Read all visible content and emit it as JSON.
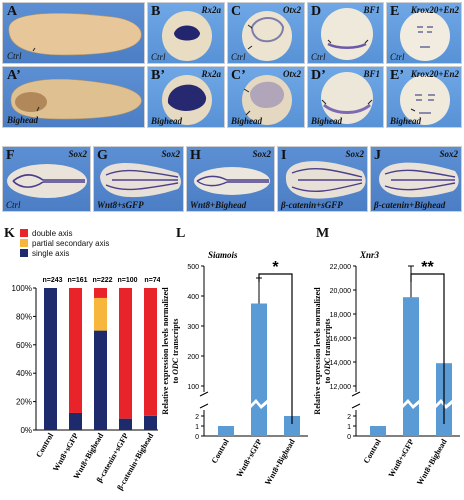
{
  "panels": {
    "A": {
      "letter": "A",
      "label": "Ctrl"
    },
    "A2": {
      "letter": "A’",
      "label": "Bighead"
    },
    "B": {
      "letter": "B",
      "gene": "Rx2a",
      "label": "Ctrl"
    },
    "C": {
      "letter": "C",
      "gene": "Otx2",
      "label": "Ctrl"
    },
    "D": {
      "letter": "D",
      "gene": "BF1",
      "label": "Ctrl"
    },
    "E": {
      "letter": "E",
      "gene": "Krox20+En2",
      "label": "Ctrl"
    },
    "B2": {
      "letter": "B’",
      "gene": "Rx2a",
      "label": "Bighead"
    },
    "C2": {
      "letter": "C’",
      "gene": "Otx2",
      "label": "Bighead"
    },
    "D2": {
      "letter": "D’",
      "gene": "BF1",
      "label": "Bighead"
    },
    "E2": {
      "letter": "E’",
      "gene": "Krox20+En2",
      "label": "Bighead"
    },
    "F": {
      "letter": "F",
      "gene": "Sox2",
      "label": "Ctrl"
    },
    "G": {
      "letter": "G",
      "gene": "Sox2",
      "label": "Wnt8+sGFP"
    },
    "H": {
      "letter": "H",
      "gene": "Sox2",
      "label": "Wnt8+Bighead"
    },
    "I": {
      "letter": "I",
      "gene": "Sox2",
      "label": "β-catenin+sGFP"
    },
    "J": {
      "letter": "J",
      "gene": "Sox2",
      "label": "β-catenin+Bighead"
    }
  },
  "chart_data": [
    {
      "type": "bar",
      "panel": "K",
      "stacked": true,
      "categories": [
        "Control",
        "Wnt8+sGFP",
        "Wnt8+Bighead",
        "β-catenin+sGFP",
        "β-catenin+Bighead"
      ],
      "n_labels": [
        "n=243",
        "n=161",
        "n=222",
        "n=100",
        "n=74"
      ],
      "series": [
        {
          "name": "single axis",
          "color": "#1d2a6b",
          "values": [
            100,
            12,
            70,
            8,
            10
          ]
        },
        {
          "name": "partial secondary axis",
          "color": "#f6b73c",
          "values": [
            0,
            0,
            23,
            0,
            0
          ]
        },
        {
          "name": "double axis",
          "color": "#e8242a",
          "values": [
            0,
            88,
            7,
            92,
            90
          ]
        }
      ],
      "legend_order": [
        "double axis",
        "partial secondary axis",
        "single axis"
      ],
      "yticks": [
        "0%",
        "20%",
        "40%",
        "60%",
        "80%",
        "100%"
      ],
      "ylim": [
        0,
        100
      ]
    },
    {
      "type": "bar",
      "panel": "L",
      "title": "Siamois",
      "ylabel_line1": "Relative expression levels normalized",
      "ylabel_line2_pre": "to ",
      "ylabel_line2_ital": "ODC",
      "ylabel_line2_post": " transcripts",
      "categories": [
        "Control",
        "Wnt8+sGFP",
        "Wnt8+Bighead"
      ],
      "values": [
        1,
        375,
        2
      ],
      "errors": [
        0,
        85,
        0
      ],
      "color": "#5b9bd5",
      "yticks_low": [
        "0",
        "1",
        "2"
      ],
      "yticks_high": [
        "100",
        "200",
        "300",
        "400",
        "500"
      ],
      "significance": "*"
    },
    {
      "type": "bar",
      "panel": "M",
      "title": "Xnr3",
      "ylabel_line1": "Relative expression levels normalized",
      "ylabel_line2_pre": "to ",
      "ylabel_line2_ital": "ODC",
      "ylabel_line2_post": " transcripts",
      "categories": [
        "Control",
        "Wnt8+sGFP",
        "Wnt8+Bighead"
      ],
      "values": [
        1,
        19400,
        13900
      ],
      "errors": [
        0,
        2600,
        0
      ],
      "color": "#5b9bd5",
      "yticks_low": [
        "0",
        "1",
        "2"
      ],
      "yticks_high": [
        "12,000",
        "14,000",
        "16,000",
        "18,000",
        "20,000",
        "22,000"
      ],
      "significance": "**"
    }
  ],
  "colors": {
    "blue_bg": "#5587cc",
    "light_blue_bg": "#6aa2e2",
    "stain": "#2b2f77"
  }
}
